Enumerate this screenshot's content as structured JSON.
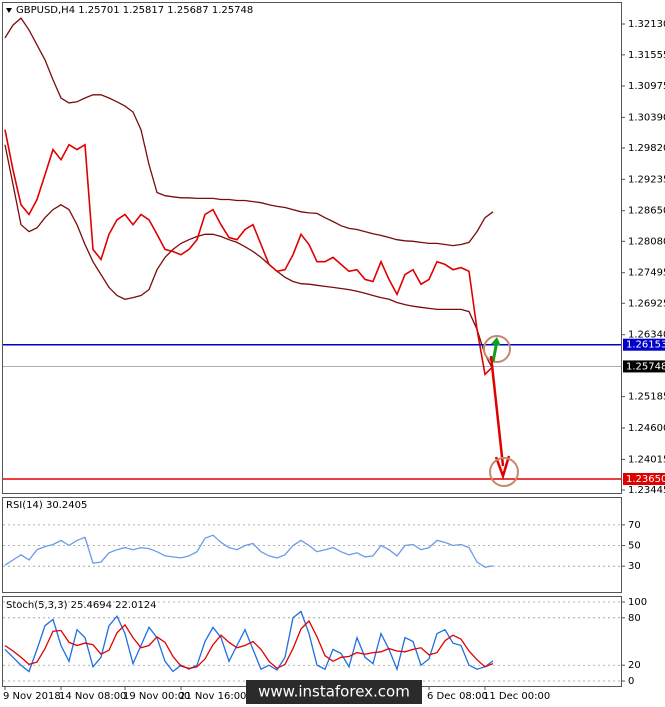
{
  "chart_data": [
    {
      "type": "line",
      "title": "GBPUSD,H4 1.25701 1.25817 1.25687 1.25748",
      "series": [
        {
          "color": "#7a0c0c",
          "values": [
            1.3187,
            1.3211,
            1.3224,
            1.3202,
            1.3174,
            1.3146,
            1.3109,
            1.3075,
            1.3066,
            1.3068,
            1.3075,
            1.3081,
            1.3081,
            1.3075,
            1.3068,
            1.306,
            1.3049,
            1.3016,
            1.2951,
            1.2899,
            1.2893,
            1.2891,
            1.2889,
            1.2889,
            1.2888,
            1.2888,
            1.2888,
            1.2886,
            1.2886,
            1.2884,
            1.2884,
            1.2882,
            1.288,
            1.2876,
            1.2873,
            1.2871,
            1.2867,
            1.2863,
            1.2861,
            1.286,
            1.2852,
            1.2845,
            1.2837,
            1.2832,
            1.283,
            1.2826,
            1.2822,
            1.2819,
            1.2815,
            1.2811,
            1.2809,
            1.2808,
            1.2806,
            1.2804,
            1.2804,
            1.2802,
            1.28,
            1.2802,
            1.2806,
            1.2826,
            1.2852,
            1.2863
          ]
        },
        {
          "color": "#7a0c0c",
          "values": [
            1.2988,
            1.2914,
            1.2839,
            1.2826,
            1.2833,
            1.2852,
            1.2867,
            1.2876,
            1.2867,
            1.2839,
            1.2802,
            1.277,
            1.2746,
            1.2722,
            1.2707,
            1.27,
            1.2703,
            1.2707,
            1.2718,
            1.2755,
            1.2778,
            1.2793,
            1.2804,
            1.2811,
            1.2817,
            1.2821,
            1.2821,
            1.2817,
            1.2811,
            1.2806,
            1.2798,
            1.2789,
            1.2778,
            1.2765,
            1.2752,
            1.2741,
            1.2733,
            1.2729,
            1.2728,
            1.2726,
            1.2724,
            1.2722,
            1.272,
            1.2718,
            1.2715,
            1.2711,
            1.2707,
            1.2703,
            1.27,
            1.2694,
            1.269,
            1.2687,
            1.2685,
            1.2683,
            1.2681,
            1.2681,
            1.2681,
            1.2681,
            1.2677,
            1.2644,
            1.2597,
            1.2569
          ]
        },
        {
          "color": "#e00000",
          "values": [
            1.3016,
            1.2941,
            1.2876,
            1.2858,
            1.2886,
            1.2932,
            1.2979,
            1.296,
            1.2988,
            1.2979,
            1.2988,
            1.2793,
            1.2774,
            1.2821,
            1.2848,
            1.2858,
            1.2839,
            1.2858,
            1.2848,
            1.2821,
            1.2793,
            1.2789,
            1.2783,
            1.2793,
            1.2811,
            1.2858,
            1.2867,
            1.2839,
            1.2815,
            1.2811,
            1.283,
            1.2839,
            1.2802,
            1.2765,
            1.2752,
            1.2755,
            1.2783,
            1.2821,
            1.2802,
            1.277,
            1.277,
            1.2778,
            1.2765,
            1.2752,
            1.2755,
            1.2737,
            1.2733,
            1.277,
            1.2737,
            1.2709,
            1.2746,
            1.2755,
            1.2728,
            1.2737,
            1.277,
            1.2765,
            1.2755,
            1.2759,
            1.2752,
            1.2644,
            1.256,
            1.25748
          ]
        }
      ],
      "ylim": [
        1.23389,
        1.3254
      ],
      "yticks": [
        {
          "value": 1.3213,
          "label": "1.32130"
        },
        {
          "value": 1.31555,
          "label": "1.31555"
        },
        {
          "value": 1.30975,
          "label": "1.30975"
        },
        {
          "value": 1.3039,
          "label": "1.30390"
        },
        {
          "value": 1.2982,
          "label": "1.29820"
        },
        {
          "value": 1.29235,
          "label": "1.29235"
        },
        {
          "value": 1.2865,
          "label": "1.28650"
        },
        {
          "value": 1.2808,
          "label": "1.28080"
        },
        {
          "value": 1.27495,
          "label": "1.27495"
        },
        {
          "value": 1.26925,
          "label": "1.26925"
        },
        {
          "value": 1.2634,
          "label": "1.26340"
        },
        {
          "value": 1.25185,
          "label": "1.25185"
        },
        {
          "value": 1.246,
          "label": "1.24600"
        },
        {
          "value": 1.24015,
          "label": "1.24015"
        },
        {
          "value": 1.23445,
          "label": "1.23445"
        }
      ],
      "levels": [
        {
          "value": 1.26153,
          "label": "1.26153",
          "color": "#0000cc"
        },
        {
          "value": 1.25748,
          "label": "1.25748",
          "color": "#000000"
        },
        {
          "value": 1.2365,
          "label": "1.23650",
          "color": "#e00000"
        }
      ]
    },
    {
      "type": "line",
      "title": "RSI(14) 30.2405",
      "series": [
        {
          "color": "#6b9be8",
          "values": [
            31,
            36,
            41,
            36,
            46,
            49,
            51,
            55,
            50,
            55,
            58,
            33,
            34,
            43,
            46,
            48,
            46,
            48,
            47,
            44,
            40,
            39,
            38,
            40,
            44,
            57,
            60,
            53,
            48,
            46,
            50,
            52,
            44,
            40,
            38,
            41,
            50,
            55,
            50,
            44,
            46,
            48,
            44,
            41,
            43,
            39,
            40,
            50,
            46,
            40,
            50,
            51,
            46,
            48,
            55,
            53,
            50,
            51,
            48,
            34,
            29,
            30.2405
          ]
        }
      ],
      "ylim": [
        5,
        97
      ],
      "yticks": [
        30,
        50,
        70
      ],
      "grid": true
    },
    {
      "type": "line",
      "title": "Stoch(5,3,3) 25.4694 22.0124",
      "categories": [
        "9 Nov 2018",
        null,
        null,
        null,
        null,
        null,
        null,
        "14 Nov 08:00",
        null,
        null,
        null,
        null,
        null,
        null,
        null,
        "19 Nov 00:00",
        null,
        null,
        null,
        null,
        null,
        null,
        "21 Nov 16:00",
        null,
        null,
        null,
        null,
        null,
        null,
        null,
        null,
        null,
        null,
        null,
        null,
        null,
        null,
        null,
        null,
        null,
        null,
        null,
        null,
        null,
        null,
        null,
        null,
        null,
        null,
        null,
        null,
        null,
        null,
        "6 Dec 08:00",
        null,
        null,
        null,
        null,
        null,
        null,
        "11 Dec 00:00",
        null
      ],
      "series": [
        {
          "color": "#1e6fe0",
          "values": [
            40,
            30,
            20,
            12,
            40,
            70,
            78,
            45,
            25,
            65,
            55,
            18,
            30,
            70,
            82,
            60,
            22,
            45,
            68,
            55,
            25,
            12,
            20,
            15,
            20,
            50,
            68,
            55,
            25,
            45,
            65,
            40,
            15,
            20,
            14,
            30,
            80,
            88,
            60,
            20,
            15,
            40,
            35,
            18,
            55,
            30,
            22,
            60,
            40,
            15,
            55,
            50,
            20,
            28,
            60,
            65,
            48,
            45,
            20,
            15,
            18,
            25.4694
          ]
        },
        {
          "color": "#e00000",
          "values": [
            45,
            38,
            30,
            21,
            24,
            41,
            63,
            64,
            49,
            45,
            48,
            46,
            34,
            39,
            61,
            71,
            55,
            42,
            45,
            56,
            49,
            31,
            19,
            16,
            18,
            28,
            46,
            58,
            49,
            42,
            45,
            50,
            40,
            25,
            16,
            21,
            41,
            66,
            76,
            56,
            32,
            25,
            30,
            31,
            36,
            34,
            36,
            37,
            41,
            38,
            37,
            40,
            42,
            33,
            36,
            51,
            58,
            53,
            38,
            27,
            18,
            22.0124
          ]
        }
      ],
      "ylim": [
        -6.3,
        107.6
      ],
      "yticks": [
        0,
        20,
        80,
        100
      ],
      "grid": true
    }
  ],
  "watermark": "www.instaforex.com"
}
